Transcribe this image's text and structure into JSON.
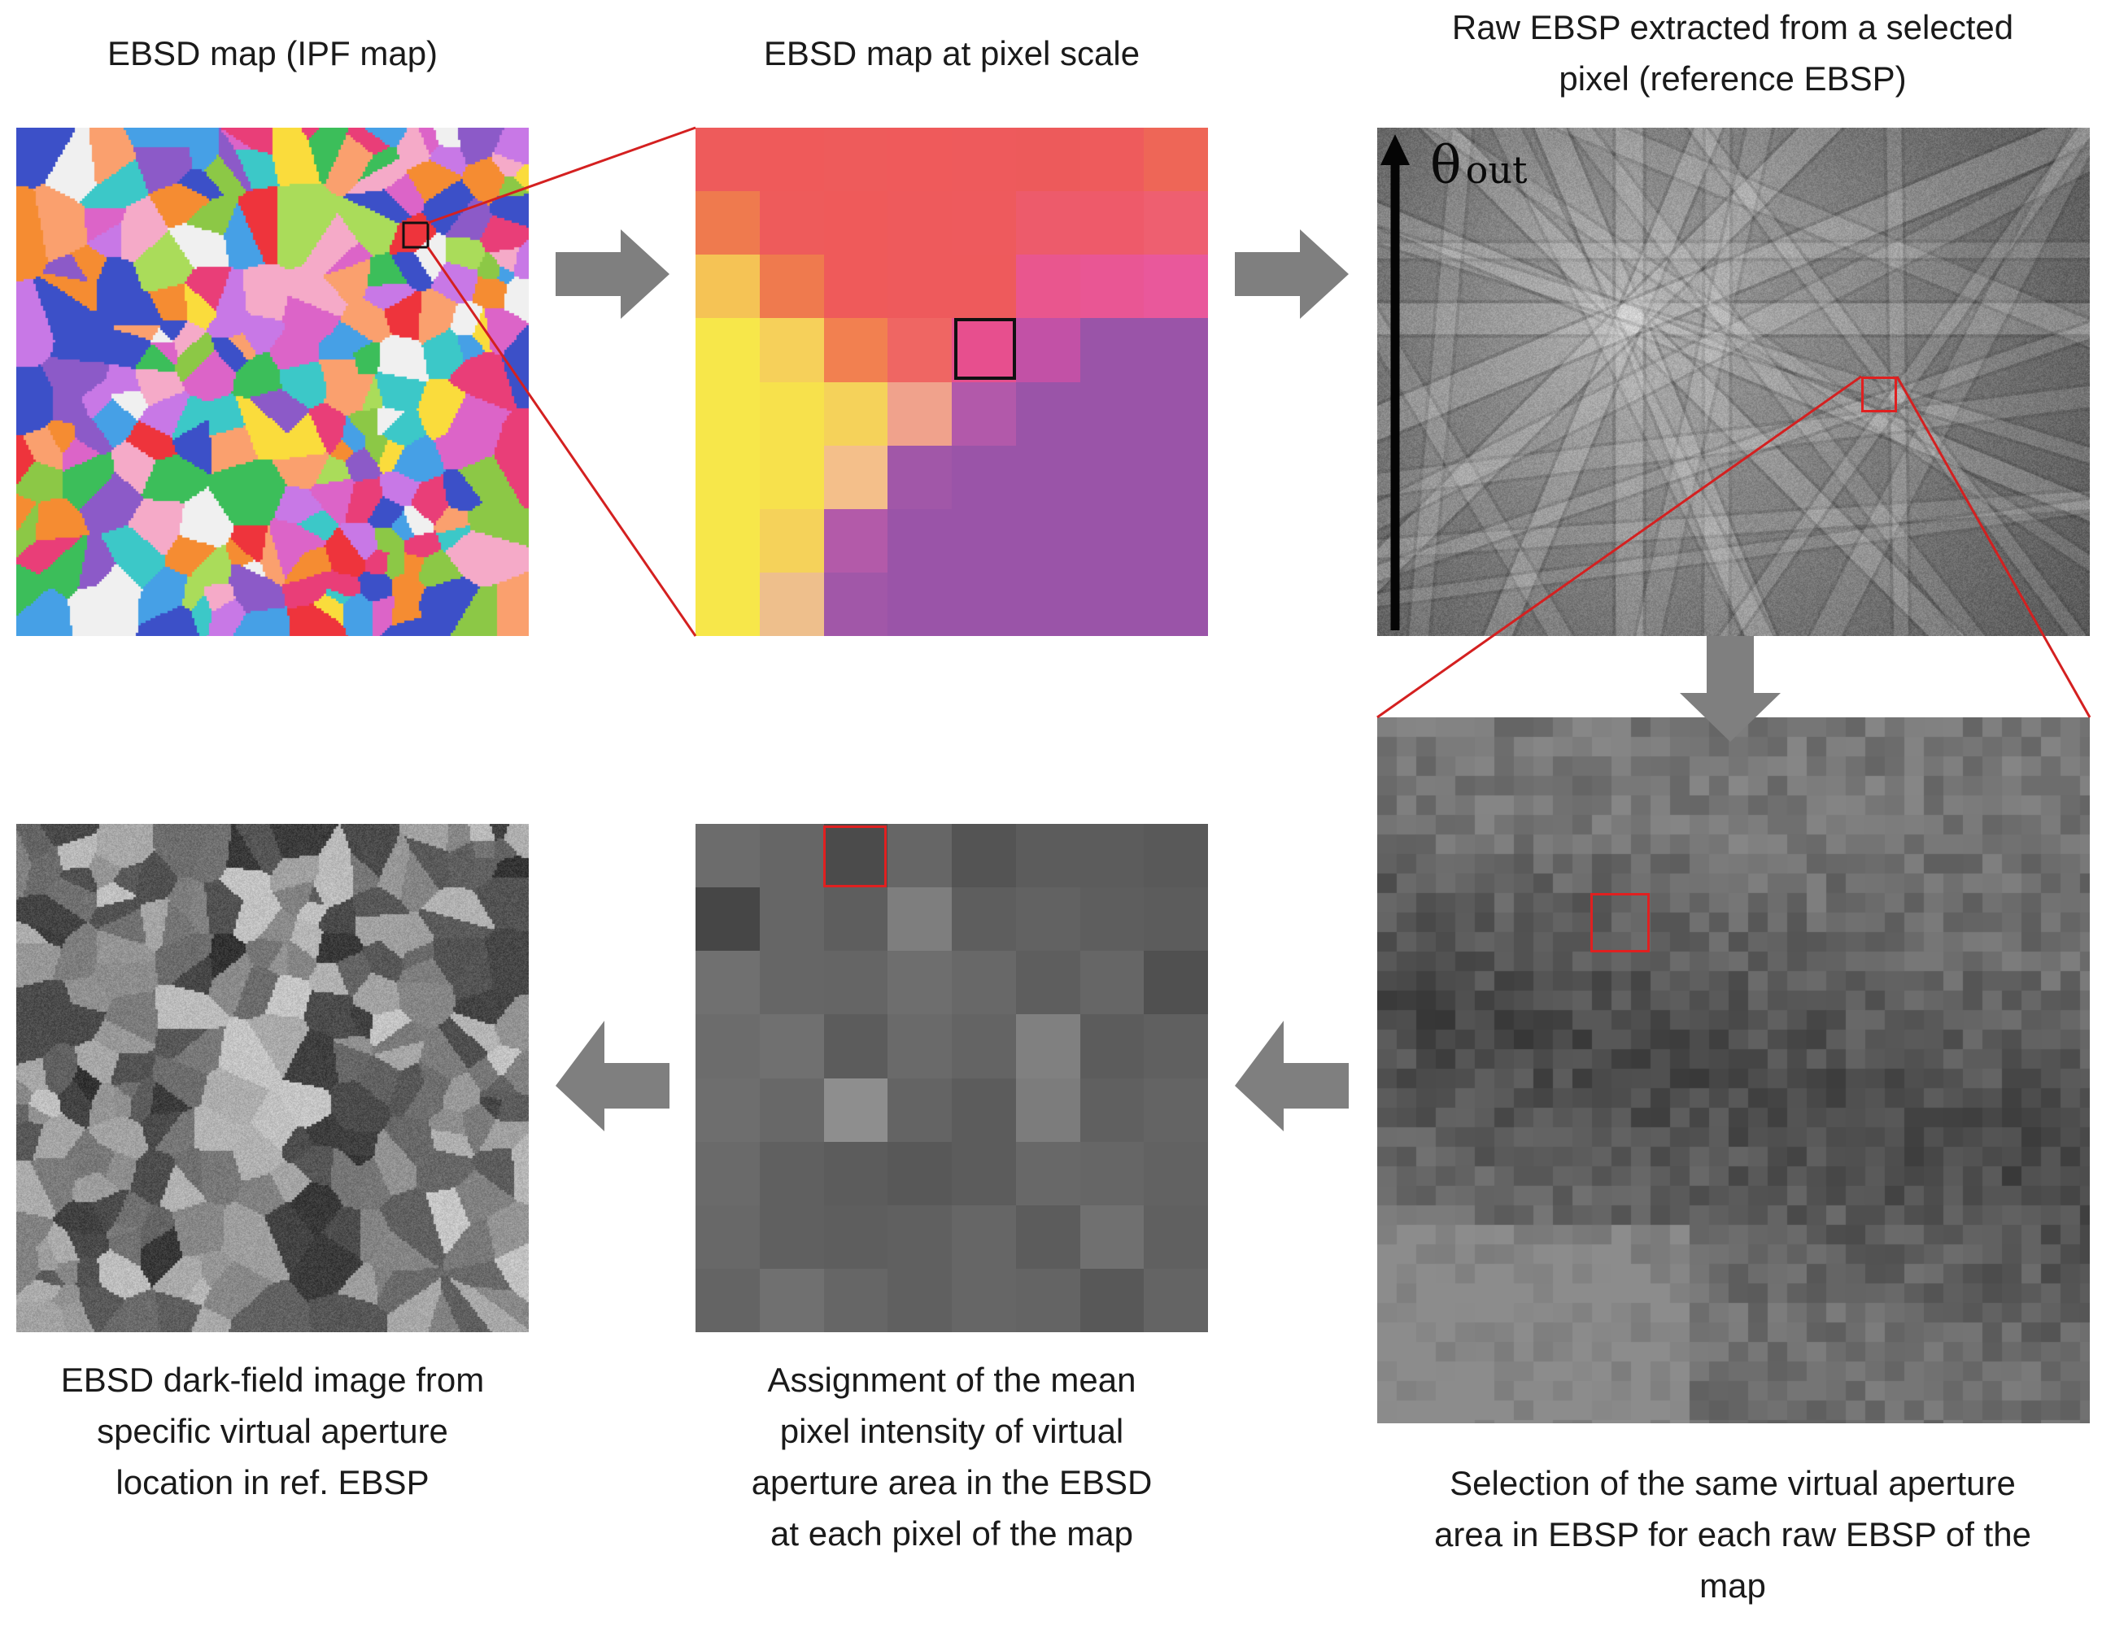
{
  "captions": {
    "ipf_map": "EBSD map (IPF map)",
    "pixel_scale": "EBSD map at pixel scale",
    "raw_ebsp_line1": "Raw EBSP extracted from a selected",
    "raw_ebsp_line2": "pixel (reference EBSP)",
    "dark_field_line1": "EBSD dark-field image from",
    "dark_field_line2": "specific virtual aperture",
    "dark_field_line3": "location in ref. EBSP",
    "assignment_line1": "Assignment of the mean",
    "assignment_line2": "pixel intensity of virtual",
    "assignment_line3": "aperture area in the EBSD",
    "assignment_line4": "at each pixel of the map",
    "selection_line1": "Selection of the same virtual aperture",
    "selection_line2": "area in EBSP for each raw EBSP of the",
    "selection_line3": "map"
  },
  "axis": {
    "theta_symbol": "θ",
    "theta_subscript": "out"
  },
  "colors": {
    "zoom_lines": "#d42020",
    "arrows": "#7f7f7f",
    "aperture_box": "#e02020",
    "pixel_box": "#111111"
  },
  "icons": {
    "flow_right": "arrow-right-icon",
    "flow_down": "arrow-down-icon",
    "flow_left": "arrow-left-icon",
    "axis_up": "arrow-up-icon"
  },
  "pixel_map_colors": [
    [
      "#ee5b5b",
      "#ef5a5a",
      "#ee5b5b",
      "#ef5a5b",
      "#ee5a5c",
      "#ed5a5b",
      "#ee5b5c",
      "#ee6657"
    ],
    [
      "#ef7a4e",
      "#ee5b5b",
      "#ef5a5a",
      "#ee5a5c",
      "#ee5a5d",
      "#ed5b6b",
      "#ee5a6a",
      "#ee5f70"
    ],
    [
      "#f5c355",
      "#ef7a4e",
      "#ef5a5a",
      "#ee5a5c",
      "#ee5a5c",
      "#e9568e",
      "#e95694",
      "#e9589b"
    ],
    [
      "#f7e74a",
      "#f6d05a",
      "#f28050",
      "#ef6663",
      "#e74f8e",
      "#c251a6",
      "#9a54a8",
      "#9a54a8"
    ],
    [
      "#f7e74a",
      "#f7e14c",
      "#f5d25a",
      "#f0a28c",
      "#b259aa",
      "#9a54a8",
      "#9a54a8",
      "#9a54a8"
    ],
    [
      "#f7e74a",
      "#f7e14c",
      "#f4bf8a",
      "#a157a8",
      "#9a54a8",
      "#9a54a8",
      "#9a54a8",
      "#9a54a8"
    ],
    [
      "#f7e74a",
      "#f5d25a",
      "#b35aa9",
      "#9a54a8",
      "#9a54a8",
      "#9a54a8",
      "#9a54a8",
      "#9a54a8"
    ],
    [
      "#f7e74a",
      "#eebf8c",
      "#a157a8",
      "#9a54a8",
      "#9a54a8",
      "#9a54a8",
      "#9a54a8",
      "#9a54a8"
    ]
  ],
  "mean_intensity_grid": [
    [
      108,
      102,
      75,
      102,
      84,
      92,
      92,
      89
    ],
    [
      70,
      102,
      94,
      126,
      94,
      98,
      94,
      92
    ],
    [
      112,
      102,
      101,
      110,
      104,
      94,
      102,
      80
    ],
    [
      108,
      112,
      92,
      106,
      100,
      128,
      92,
      96
    ],
    [
      110,
      104,
      142,
      100,
      92,
      124,
      96,
      100
    ],
    [
      106,
      96,
      92,
      88,
      92,
      104,
      102,
      98
    ],
    [
      104,
      96,
      94,
      96,
      102,
      92,
      112,
      96
    ],
    [
      100,
      112,
      102,
      96,
      102,
      100,
      88,
      100
    ]
  ]
}
